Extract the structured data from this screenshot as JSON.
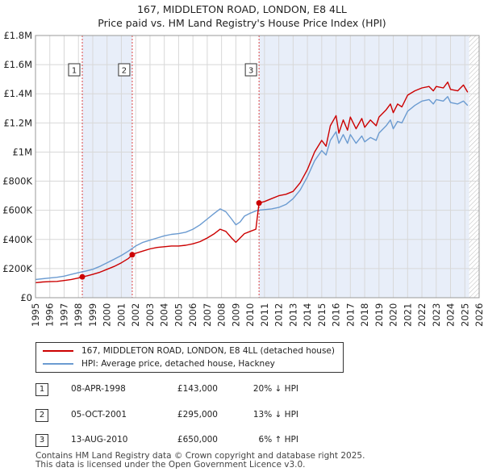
{
  "chart_data": {
    "type": "line",
    "title": "167, MIDDLETON ROAD, LONDON, E8 4LL",
    "subtitle": "Price paid vs. HM Land Registry's House Price Index (HPI)",
    "xlim": [
      1995,
      2026
    ],
    "ylim": [
      0,
      1800000
    ],
    "y_ticks": [
      0,
      200000,
      400000,
      600000,
      800000,
      1000000,
      1200000,
      1400000,
      1600000,
      1800000
    ],
    "y_tick_labels": [
      "£0",
      "£200K",
      "£400K",
      "£600K",
      "£800K",
      "£1M",
      "£1.2M",
      "£1.4M",
      "£1.6M",
      "£1.8M"
    ],
    "x_tick_labels": [
      "1995",
      "1996",
      "1997",
      "1998",
      "1999",
      "2000",
      "2001",
      "2002",
      "2003",
      "2004",
      "2005",
      "2006",
      "2007",
      "2008",
      "2009",
      "2010",
      "2011",
      "2012",
      "2013",
      "2014",
      "2015",
      "2016",
      "2017",
      "2018",
      "2019",
      "2020",
      "2021",
      "2022",
      "2023",
      "2024",
      "2025",
      "2026"
    ],
    "grid": true,
    "shaded_periods": [
      [
        1998.27,
        2001.76
      ],
      [
        2010.62,
        2025.3
      ]
    ],
    "hatched_region": [
      2025.3,
      2026
    ],
    "series": [
      {
        "name": "167, MIDDLETON ROAD, LONDON, E8 4LL (detached house)",
        "color": "#cc0000",
        "points": [
          [
            1995.0,
            103000
          ],
          [
            1995.5,
            108000
          ],
          [
            1996.0,
            110000
          ],
          [
            1996.5,
            112000
          ],
          [
            1997.0,
            118000
          ],
          [
            1997.5,
            125000
          ],
          [
            1998.0,
            135000
          ],
          [
            1998.27,
            143000
          ],
          [
            1998.6,
            150000
          ],
          [
            1999.0,
            160000
          ],
          [
            1999.5,
            175000
          ],
          [
            2000.0,
            195000
          ],
          [
            2000.5,
            215000
          ],
          [
            2001.0,
            240000
          ],
          [
            2001.5,
            270000
          ],
          [
            2001.76,
            295000
          ],
          [
            2002.0,
            305000
          ],
          [
            2002.5,
            320000
          ],
          [
            2003.0,
            335000
          ],
          [
            2003.5,
            345000
          ],
          [
            2004.0,
            350000
          ],
          [
            2004.5,
            355000
          ],
          [
            2005.0,
            355000
          ],
          [
            2005.5,
            360000
          ],
          [
            2006.0,
            370000
          ],
          [
            2006.5,
            385000
          ],
          [
            2007.0,
            410000
          ],
          [
            2007.5,
            440000
          ],
          [
            2007.9,
            470000
          ],
          [
            2008.3,
            455000
          ],
          [
            2008.7,
            410000
          ],
          [
            2009.0,
            380000
          ],
          [
            2009.2,
            400000
          ],
          [
            2009.6,
            440000
          ],
          [
            2010.0,
            455000
          ],
          [
            2010.4,
            470000
          ],
          [
            2010.62,
            650000
          ],
          [
            2011.0,
            660000
          ],
          [
            2011.5,
            680000
          ],
          [
            2012.0,
            700000
          ],
          [
            2012.5,
            710000
          ],
          [
            2013.0,
            730000
          ],
          [
            2013.5,
            790000
          ],
          [
            2014.0,
            880000
          ],
          [
            2014.5,
            1000000
          ],
          [
            2015.0,
            1080000
          ],
          [
            2015.3,
            1040000
          ],
          [
            2015.6,
            1180000
          ],
          [
            2016.0,
            1250000
          ],
          [
            2016.2,
            1130000
          ],
          [
            2016.5,
            1220000
          ],
          [
            2016.8,
            1150000
          ],
          [
            2017.0,
            1240000
          ],
          [
            2017.4,
            1160000
          ],
          [
            2017.8,
            1230000
          ],
          [
            2018.0,
            1170000
          ],
          [
            2018.4,
            1220000
          ],
          [
            2018.8,
            1180000
          ],
          [
            2019.0,
            1240000
          ],
          [
            2019.5,
            1290000
          ],
          [
            2019.8,
            1330000
          ],
          [
            2020.0,
            1270000
          ],
          [
            2020.3,
            1330000
          ],
          [
            2020.6,
            1310000
          ],
          [
            2021.0,
            1390000
          ],
          [
            2021.5,
            1420000
          ],
          [
            2022.0,
            1440000
          ],
          [
            2022.5,
            1450000
          ],
          [
            2022.8,
            1420000
          ],
          [
            2023.0,
            1450000
          ],
          [
            2023.5,
            1440000
          ],
          [
            2023.8,
            1480000
          ],
          [
            2024.0,
            1430000
          ],
          [
            2024.5,
            1420000
          ],
          [
            2024.9,
            1460000
          ],
          [
            2025.2,
            1410000
          ]
        ]
      },
      {
        "name": "HPI: Average price, detached house, Hackney",
        "color": "#6b9bd1",
        "points": [
          [
            1995.0,
            125000
          ],
          [
            1995.5,
            130000
          ],
          [
            1996.0,
            135000
          ],
          [
            1996.5,
            140000
          ],
          [
            1997.0,
            148000
          ],
          [
            1997.5,
            160000
          ],
          [
            1998.0,
            172000
          ],
          [
            1998.5,
            182000
          ],
          [
            1999.0,
            195000
          ],
          [
            1999.5,
            215000
          ],
          [
            2000.0,
            240000
          ],
          [
            2000.5,
            265000
          ],
          [
            2001.0,
            290000
          ],
          [
            2001.5,
            320000
          ],
          [
            2002.0,
            355000
          ],
          [
            2002.5,
            380000
          ],
          [
            2003.0,
            395000
          ],
          [
            2003.5,
            410000
          ],
          [
            2004.0,
            425000
          ],
          [
            2004.5,
            435000
          ],
          [
            2005.0,
            440000
          ],
          [
            2005.5,
            450000
          ],
          [
            2006.0,
            470000
          ],
          [
            2006.5,
            500000
          ],
          [
            2007.0,
            540000
          ],
          [
            2007.5,
            580000
          ],
          [
            2007.9,
            610000
          ],
          [
            2008.3,
            590000
          ],
          [
            2008.7,
            540000
          ],
          [
            2009.0,
            500000
          ],
          [
            2009.3,
            520000
          ],
          [
            2009.6,
            560000
          ],
          [
            2010.0,
            580000
          ],
          [
            2010.5,
            600000
          ],
          [
            2011.0,
            605000
          ],
          [
            2011.5,
            610000
          ],
          [
            2012.0,
            620000
          ],
          [
            2012.5,
            640000
          ],
          [
            2013.0,
            680000
          ],
          [
            2013.5,
            740000
          ],
          [
            2014.0,
            830000
          ],
          [
            2014.5,
            940000
          ],
          [
            2015.0,
            1010000
          ],
          [
            2015.3,
            980000
          ],
          [
            2015.6,
            1080000
          ],
          [
            2016.0,
            1140000
          ],
          [
            2016.2,
            1060000
          ],
          [
            2016.5,
            1120000
          ],
          [
            2016.8,
            1060000
          ],
          [
            2017.0,
            1120000
          ],
          [
            2017.4,
            1060000
          ],
          [
            2017.8,
            1110000
          ],
          [
            2018.0,
            1070000
          ],
          [
            2018.4,
            1100000
          ],
          [
            2018.8,
            1080000
          ],
          [
            2019.0,
            1130000
          ],
          [
            2019.5,
            1180000
          ],
          [
            2019.8,
            1220000
          ],
          [
            2020.0,
            1160000
          ],
          [
            2020.3,
            1210000
          ],
          [
            2020.6,
            1200000
          ],
          [
            2021.0,
            1280000
          ],
          [
            2021.5,
            1320000
          ],
          [
            2022.0,
            1350000
          ],
          [
            2022.5,
            1360000
          ],
          [
            2022.8,
            1330000
          ],
          [
            2023.0,
            1360000
          ],
          [
            2023.5,
            1350000
          ],
          [
            2023.8,
            1380000
          ],
          [
            2024.0,
            1340000
          ],
          [
            2024.5,
            1330000
          ],
          [
            2024.9,
            1350000
          ],
          [
            2025.2,
            1320000
          ]
        ]
      }
    ],
    "sales": [
      {
        "id": "1",
        "x": 1998.27,
        "value": 143000
      },
      {
        "id": "2",
        "x": 2001.76,
        "value": 295000
      },
      {
        "id": "3",
        "x": 2010.62,
        "value": 650000
      }
    ]
  },
  "legend": {
    "property_label": "167, MIDDLETON ROAD, LONDON, E8 4LL (detached house)",
    "hpi_label": "HPI: Average price, detached house, Hackney"
  },
  "transactions": [
    {
      "num": "1",
      "date": "08-APR-1998",
      "price": "£143,000",
      "hpi": "20% ↓ HPI"
    },
    {
      "num": "2",
      "date": "05-OCT-2001",
      "price": "£295,000",
      "hpi": "13% ↓ HPI"
    },
    {
      "num": "3",
      "date": "13-AUG-2010",
      "price": "£650,000",
      "hpi": "6% ↑ HPI"
    }
  ],
  "footer": {
    "line1": "Contains HM Land Registry data © Crown copyright and database right 2025.",
    "line2": "This data is licensed under the Open Government Licence v3.0."
  },
  "colors": {
    "property": "#cc0000",
    "hpi": "#6b9bd1",
    "shade": "#e8eef9",
    "grid": "#d8d8d8",
    "marker_line": "#dd4444"
  }
}
